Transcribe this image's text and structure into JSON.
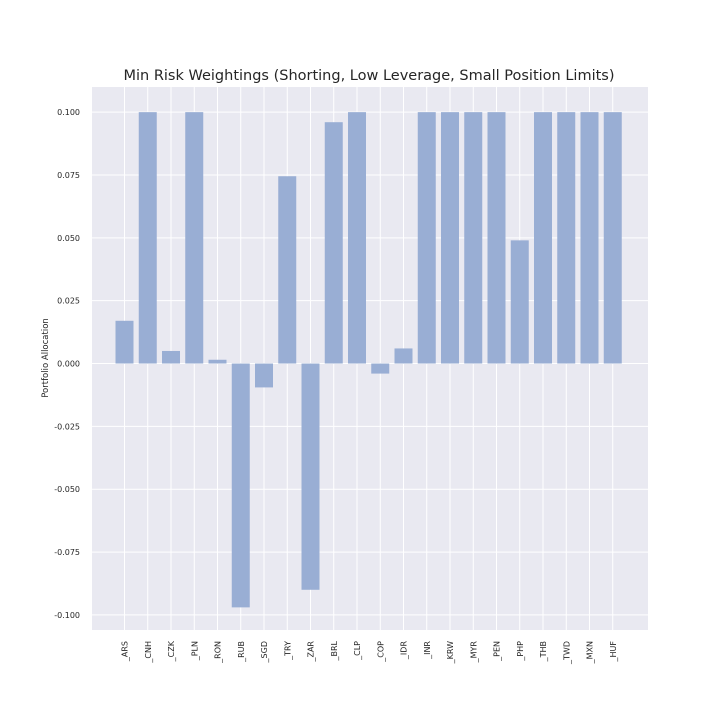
{
  "chart_data": {
    "type": "bar",
    "title": "Min Risk Weightings (Shorting, Low Leverage, Small Position Limits)",
    "xlabel": "",
    "ylabel": "Portfolio Allocation",
    "categories": [
      "_ARS",
      "_CNH",
      "_CZK",
      "_PLN",
      "_RON",
      "_RUB",
      "_SGD",
      "_TRY",
      "_ZAR",
      "_BRL",
      "_CLP",
      "_COP",
      "_IDR",
      "_INR",
      "_KRW",
      "_MYR",
      "_PEN",
      "_PHP",
      "_THB",
      "_TWD",
      "_MXN",
      "_HUF"
    ],
    "values": [
      0.017,
      0.1,
      0.005,
      0.1,
      0.0015,
      -0.097,
      -0.0095,
      0.0745,
      -0.09,
      0.096,
      0.1,
      -0.004,
      0.006,
      0.1,
      0.1,
      0.1,
      0.1,
      0.049,
      0.1,
      0.1,
      0.1,
      0.1
    ],
    "ylim": [
      -0.106,
      0.11
    ],
    "yticks": [
      "-0.100",
      "-0.075",
      "-0.050",
      "-0.025",
      "0.000",
      "0.025",
      "0.050",
      "0.075",
      "0.100"
    ],
    "grid": true,
    "colors": {
      "bar": "#99aed4",
      "background": "#e9e9f1",
      "grid": "#ffffff"
    }
  }
}
